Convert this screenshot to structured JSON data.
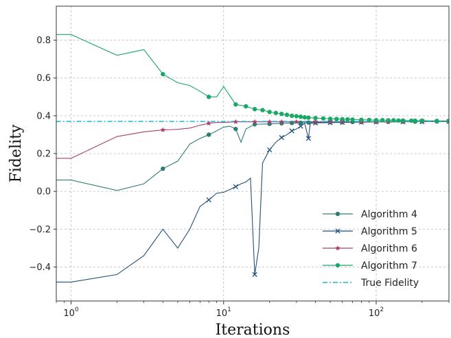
{
  "chart_data": {
    "type": "line",
    "xlabel": "Iterations",
    "ylabel": "Fidelity",
    "x_scale": "log",
    "xlim": [
      0.8,
      300
    ],
    "ylim": [
      -0.58,
      0.98
    ],
    "x_ticks": [
      {
        "value": 1,
        "base": "10",
        "exp": "0"
      },
      {
        "value": 10,
        "base": "10",
        "exp": "1"
      },
      {
        "value": 100,
        "base": "10",
        "exp": "2"
      }
    ],
    "y_ticks": [
      {
        "value": -0.4,
        "label": "−0.4"
      },
      {
        "value": -0.2,
        "label": "−0.2"
      },
      {
        "value": 0.0,
        "label": "0.0"
      },
      {
        "value": 0.2,
        "label": "0.2"
      },
      {
        "value": 0.4,
        "label": "0.4"
      },
      {
        "value": 0.6,
        "label": "0.6"
      },
      {
        "value": 0.8,
        "label": "0.8"
      }
    ],
    "grid": true,
    "legend_position": "bottom-right",
    "series": [
      {
        "name": "Algorithm 4",
        "color": "#2e7d73",
        "marker": "circle",
        "x": [
          0.5,
          1,
          2,
          3,
          4,
          5,
          6,
          7,
          8,
          9,
          10,
          11,
          12,
          13,
          14,
          16,
          20,
          24,
          28,
          32,
          36,
          40,
          50,
          60,
          70,
          80,
          100,
          120,
          150,
          180,
          200,
          250,
          300
        ],
        "y": [
          0.06,
          0.06,
          0.005,
          0.04,
          0.12,
          0.16,
          0.25,
          0.28,
          0.3,
          0.32,
          0.34,
          0.345,
          0.33,
          0.26,
          0.33,
          0.355,
          0.357,
          0.36,
          0.362,
          0.363,
          0.364,
          0.365,
          0.366,
          0.366,
          0.367,
          0.367,
          0.368,
          0.368,
          0.369,
          0.369,
          0.37,
          0.37,
          0.37
        ]
      },
      {
        "name": "Algorithm 5",
        "color": "#1f4e79",
        "marker": "x",
        "x": [
          0.5,
          1,
          2,
          3,
          4,
          5,
          6,
          7,
          8,
          9,
          10,
          11,
          12,
          13,
          14,
          15,
          16,
          17,
          18,
          20,
          22,
          24,
          26,
          28,
          30,
          32,
          34,
          36,
          37,
          40,
          50,
          60,
          80,
          100,
          150,
          200,
          300
        ],
        "y": [
          -0.48,
          -0.48,
          -0.44,
          -0.34,
          -0.2,
          -0.3,
          -0.2,
          -0.08,
          -0.045,
          -0.01,
          -0.005,
          0.01,
          0.025,
          0.04,
          0.05,
          0.07,
          -0.44,
          -0.3,
          0.15,
          0.22,
          0.26,
          0.285,
          0.3,
          0.32,
          0.33,
          0.345,
          0.36,
          0.28,
          0.36,
          0.362,
          0.364,
          0.365,
          0.366,
          0.367,
          0.368,
          0.369,
          0.37
        ]
      },
      {
        "name": "Algorithm 6",
        "color": "#a83e6e",
        "marker": "star",
        "x": [
          0.5,
          1,
          2,
          3,
          4,
          5,
          6,
          7,
          8,
          9,
          10,
          12,
          16,
          20,
          24,
          30,
          40,
          50,
          60,
          80,
          100,
          120,
          150,
          200,
          250,
          300
        ],
        "y": [
          0.175,
          0.175,
          0.29,
          0.315,
          0.325,
          0.328,
          0.335,
          0.35,
          0.36,
          0.365,
          0.365,
          0.368,
          0.368,
          0.368,
          0.368,
          0.368,
          0.368,
          0.368,
          0.368,
          0.368,
          0.368,
          0.368,
          0.369,
          0.369,
          0.37,
          0.37
        ]
      },
      {
        "name": "Algorithm 7",
        "color": "#19a866",
        "marker": "circle",
        "x": [
          0.5,
          1,
          2,
          3,
          4,
          5,
          6,
          7,
          8,
          9,
          10,
          12,
          14,
          16,
          18,
          20,
          22,
          24,
          26,
          28,
          30,
          32,
          34,
          36,
          40,
          45,
          50,
          55,
          60,
          65,
          70,
          80,
          90,
          100,
          110,
          120,
          130,
          140,
          150,
          170,
          180,
          200,
          250,
          300
        ],
        "y": [
          0.83,
          0.83,
          0.72,
          0.75,
          0.62,
          0.575,
          0.56,
          0.53,
          0.5,
          0.5,
          0.555,
          0.46,
          0.45,
          0.435,
          0.43,
          0.42,
          0.415,
          0.41,
          0.405,
          0.4,
          0.398,
          0.395,
          0.392,
          0.39,
          0.388,
          0.386,
          0.384,
          0.383,
          0.382,
          0.381,
          0.38,
          0.379,
          0.378,
          0.377,
          0.377,
          0.376,
          0.376,
          0.375,
          0.375,
          0.374,
          0.374,
          0.374,
          0.373,
          0.373
        ]
      },
      {
        "name": "True Fidelity",
        "color": "#1fb4d4",
        "marker": "none",
        "dashed": true,
        "x": [
          0.5,
          300
        ],
        "y": [
          0.37,
          0.37
        ]
      }
    ]
  }
}
